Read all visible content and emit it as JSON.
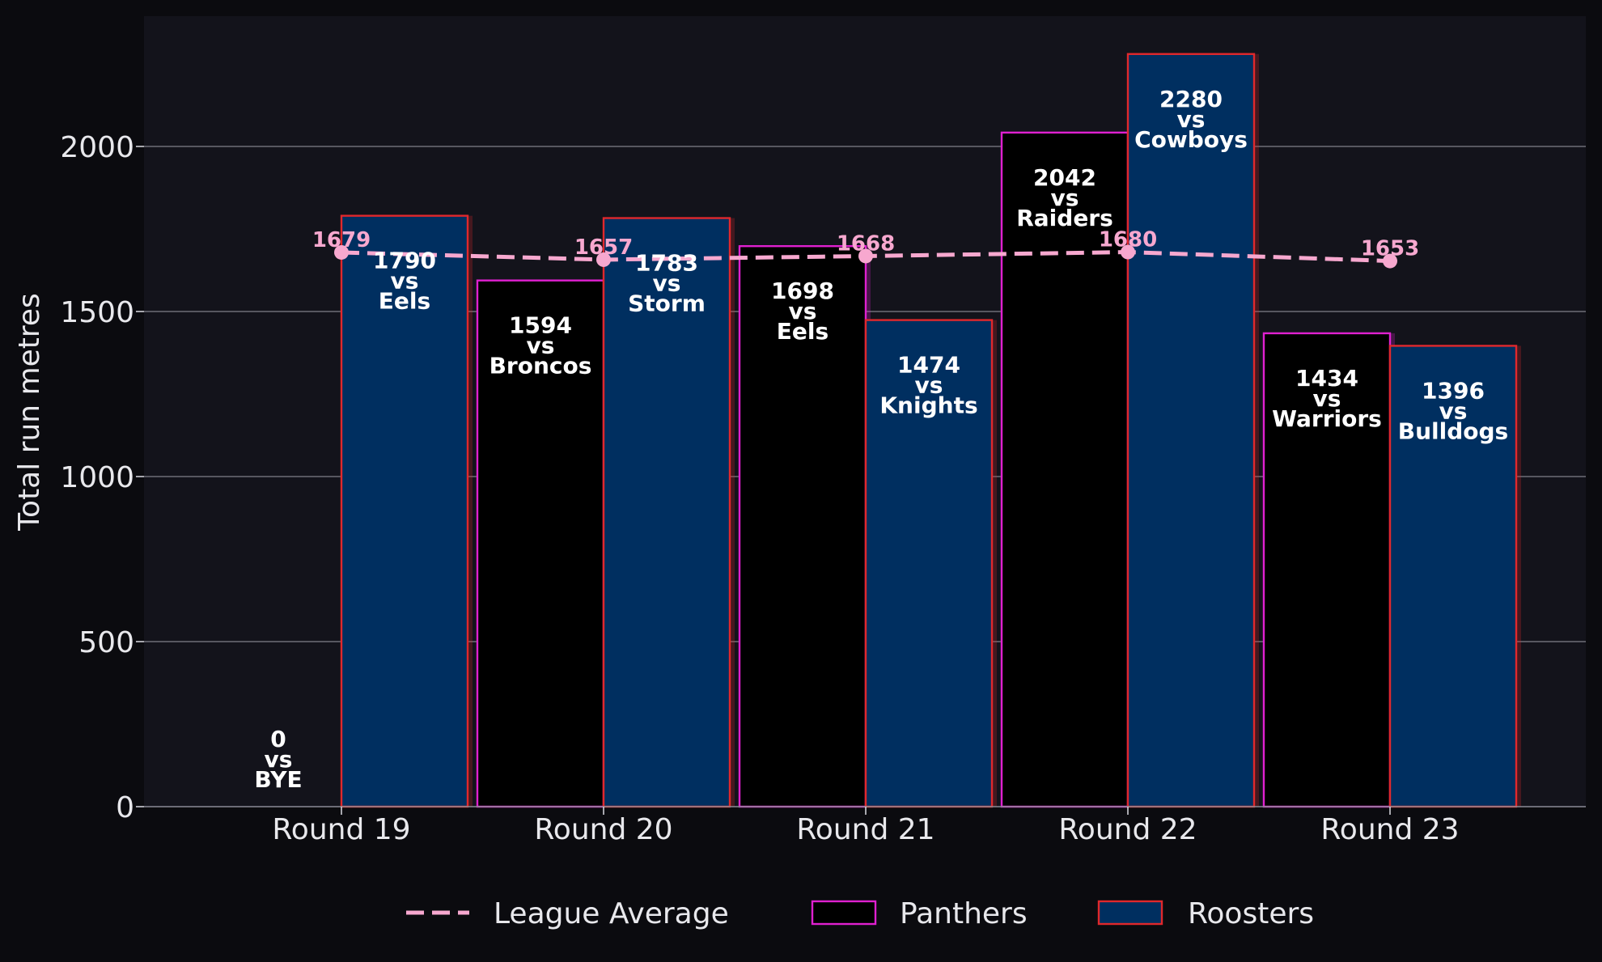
{
  "chart_data": {
    "type": "bar",
    "title": "",
    "xlabel": "",
    "ylabel": "Total run metres",
    "ylim": [
      0,
      2400
    ],
    "yticks": [
      0,
      500,
      1000,
      1500,
      2000
    ],
    "categories": [
      "Round 19",
      "Round 20",
      "Round 21",
      "Round 22",
      "Round 23"
    ],
    "series": [
      {
        "name": "Panthers",
        "values": [
          0,
          1594,
          1698,
          2042,
          1434
        ],
        "opponents": [
          "BYE",
          "Broncos",
          "Eels",
          "Raiders",
          "Warriors"
        ],
        "fill": "#000000",
        "edge": "#e020d0"
      },
      {
        "name": "Roosters",
        "values": [
          1790,
          1783,
          1474,
          2280,
          1396
        ],
        "opponents": [
          "Eels",
          "Storm",
          "Knights",
          "Cowboys",
          "Bulldogs"
        ],
        "fill": "#002f60",
        "edge": "#e0282c"
      }
    ],
    "league_average": {
      "name": "League Average",
      "values": [
        1679,
        1657,
        1668,
        1680,
        1653
      ],
      "color": "#f7a8cf"
    },
    "vs_label": "vs",
    "grid": "horizontal",
    "legend_position": "bottom-center",
    "background": "#13131b"
  }
}
